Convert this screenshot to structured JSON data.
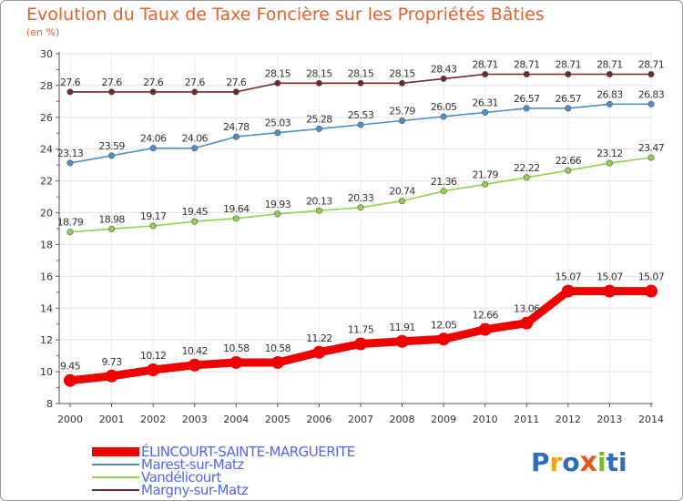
{
  "colors": {
    "title": "#e2622c",
    "axis": "#555555",
    "grid": "#e2e2e2",
    "legend_text": "#5566ee",
    "logo": [
      "#2f6db7",
      "#f3a21b",
      "#2f6db7",
      "#e05a1e",
      "#7ab828",
      "#2f6db7"
    ]
  },
  "logo_text": [
    "P",
    "r",
    "o",
    "x",
    "i",
    "t",
    "i"
  ],
  "chart_data": {
    "type": "line",
    "title": "Evolution du Taux de Taxe Foncière sur les Propriétés Bâties",
    "ylabel": "(en %)",
    "xlabel": "",
    "ylim": [
      8,
      30
    ],
    "yticks": [
      8,
      10,
      12,
      14,
      16,
      18,
      20,
      22,
      24,
      26,
      28,
      30
    ],
    "categories": [
      "2000",
      "2001",
      "2002",
      "2003",
      "2004",
      "2005",
      "2006",
      "2007",
      "2008",
      "2009",
      "2010",
      "2011",
      "2012",
      "2013",
      "2014"
    ],
    "series": [
      {
        "name": "Margny-sur-Matz",
        "color": "#6e2a2a",
        "values": [
          27.6,
          27.6,
          27.6,
          27.6,
          27.6,
          28.15,
          28.15,
          28.15,
          28.15,
          28.43,
          28.71,
          28.71,
          28.71,
          28.71,
          28.71
        ],
        "labels": [
          "27.6",
          "27.6",
          "27.6",
          "27.6",
          "27.6",
          "28.15",
          "28.15",
          "28.15",
          "28.15",
          "28.43",
          "28.71",
          "28.71",
          "28.71",
          "28.71",
          "28.71"
        ],
        "bold": false
      },
      {
        "name": "Marest-sur-Matz",
        "color": "#4f8ec9",
        "values": [
          23.13,
          23.59,
          24.06,
          24.06,
          24.78,
          25.03,
          25.28,
          25.53,
          25.79,
          26.05,
          26.31,
          26.57,
          26.57,
          26.83,
          26.83
        ],
        "labels": [
          "23.13",
          "23.59",
          "24.06",
          "24.06",
          "24.78",
          "25.03",
          "25.28",
          "25.53",
          "25.79",
          "26.05",
          "26.31",
          "26.57",
          "26.57",
          "26.83",
          "26.83"
        ],
        "bold": false
      },
      {
        "name": "Vandélicourt",
        "color": "#8fd24f",
        "values": [
          18.79,
          18.98,
          19.17,
          19.45,
          19.64,
          19.93,
          20.13,
          20.33,
          20.74,
          21.36,
          21.79,
          22.22,
          22.66,
          23.12,
          23.47
        ],
        "labels": [
          "18.79",
          "18.98",
          "19.17",
          "19.45",
          "19.64",
          "19.93",
          "20.13",
          "20.33",
          "20.74",
          "21.36",
          "21.79",
          "22.22",
          "22.66",
          "23.12",
          "23.47"
        ],
        "bold": false
      },
      {
        "name": "ÉLINCOURT-SAINTE-MARGUERITE",
        "color": "#f00000",
        "values": [
          9.45,
          9.73,
          10.12,
          10.42,
          10.58,
          10.58,
          11.22,
          11.75,
          11.91,
          12.05,
          12.66,
          13.06,
          15.07,
          15.07,
          15.07
        ],
        "labels": [
          "9.45",
          "9.73",
          "10.12",
          "10.42",
          "10.58",
          "10.58",
          "11.22",
          "11.75",
          "11.91",
          "12.05",
          "12.66",
          "13.06",
          "15.07",
          "15.07",
          "15.07"
        ],
        "bold": true
      }
    ],
    "legend": [
      "ÉLINCOURT-SAINTE-MARGUERITE",
      "Marest-sur-Matz",
      "Vandélicourt",
      "Margny-sur-Matz"
    ],
    "legend_position": "bottom-left"
  }
}
